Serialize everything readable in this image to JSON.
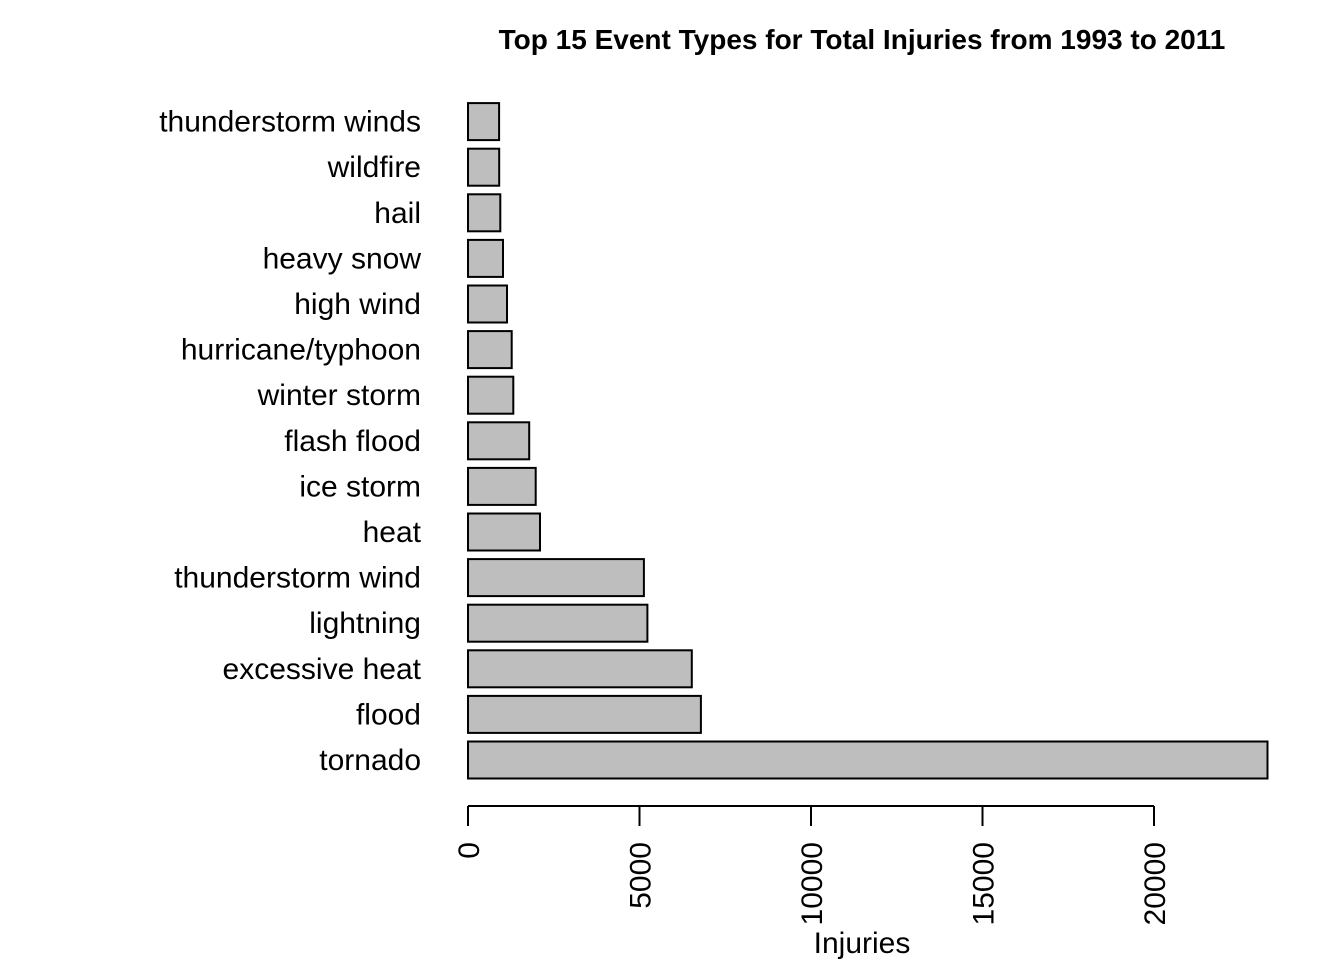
{
  "chart_data": {
    "type": "bar",
    "orientation": "horizontal",
    "title": "Top 15 Event Types for Total Injuries from 1993 to 2011",
    "xlabel": "Injuries",
    "ylabel": "",
    "xlim": [
      0,
      23500
    ],
    "xticks": [
      0,
      5000,
      10000,
      15000,
      20000
    ],
    "tick_labels": [
      "0",
      "5000",
      "10000",
      "15000",
      "20000"
    ],
    "categories": [
      "tornado",
      "flood",
      "excessive heat",
      "lightning",
      "thunderstorm wind",
      "heat",
      "ice storm",
      "flash flood",
      "winter storm",
      "hurricane/typhoon",
      "high wind",
      "heavy snow",
      "hail",
      "wildfire",
      "thunderstorm winds"
    ],
    "values": [
      23310,
      6789,
      6525,
      5230,
      5129,
      2100,
      1975,
      1785,
      1321,
      1275,
      1137,
      1021,
      943,
      911,
      908
    ],
    "bar_fill": "#bebebe",
    "bar_stroke": "#000000",
    "grid": false,
    "legend": "none"
  }
}
